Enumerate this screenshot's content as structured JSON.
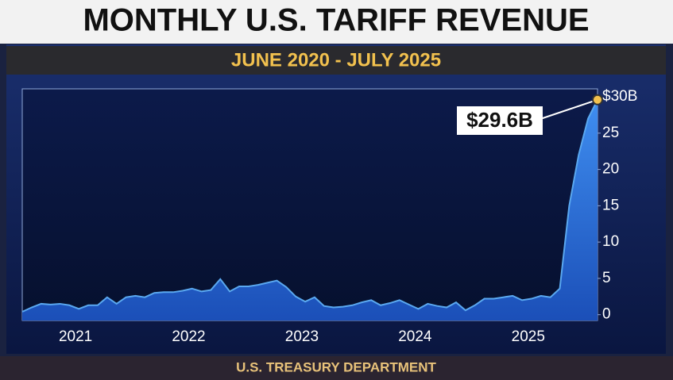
{
  "chart_data": {
    "type": "area",
    "title": "MONTHLY U.S. TARIFF REVENUE",
    "subtitle": "JUNE 2020 - JULY 2025",
    "source": "U.S. TREASURY DEPARTMENT",
    "categories": [
      null,
      null,
      null,
      null,
      null,
      null,
      null,
      "2021",
      null,
      null,
      null,
      null,
      null,
      null,
      null,
      null,
      null,
      null,
      null,
      "2022",
      null,
      null,
      null,
      null,
      null,
      null,
      null,
      null,
      null,
      null,
      null,
      "2023",
      null,
      null,
      null,
      null,
      null,
      null,
      null,
      null,
      null,
      null,
      null,
      "2024",
      null,
      null,
      null,
      null,
      null,
      null,
      null,
      null,
      null,
      null,
      null,
      "2025",
      null,
      null,
      null,
      null,
      null,
      null
    ],
    "series": [
      {
        "color": "#5aa8f0",
        "values": [
          0.4,
          1.0,
          1.5,
          1.4,
          1.5,
          1.3,
          0.8,
          1.3,
          1.3,
          2.4,
          1.5,
          2.4,
          2.6,
          2.4,
          3.0,
          3.1,
          3.1,
          3.3,
          3.6,
          3.2,
          3.4,
          4.9,
          3.2,
          3.9,
          3.9,
          4.1,
          4.4,
          4.7,
          3.8,
          2.5,
          1.8,
          2.4,
          1.2,
          1.0,
          1.1,
          1.3,
          1.7,
          2.0,
          1.3,
          1.6,
          2.0,
          1.4,
          0.8,
          1.5,
          1.2,
          1.0,
          1.7,
          0.6,
          1.3,
          2.2,
          2.2,
          2.4,
          2.6,
          2.0,
          2.2,
          2.6,
          2.4,
          3.6,
          15,
          22,
          27,
          29.6
        ],
        "value_labels": [
          null,
          null,
          null,
          null,
          null,
          null,
          null,
          null,
          null,
          null,
          null,
          null,
          null,
          null,
          null,
          null,
          null,
          null,
          null,
          null,
          null,
          null,
          null,
          null,
          null,
          null,
          null,
          null,
          null,
          null,
          null,
          null,
          null,
          null,
          null,
          null,
          null,
          null,
          null,
          null,
          null,
          null,
          null,
          null,
          null,
          null,
          null,
          null,
          null,
          null,
          null,
          null,
          null,
          null,
          null,
          null,
          null,
          null,
          null,
          null,
          null,
          "$29.6B"
        ]
      }
    ],
    "ylim": [
      -0.8,
      31.1
    ],
    "yticks": [
      0,
      5,
      10,
      15,
      20,
      25,
      {
        "value": 30,
        "label": "$30B"
      }
    ],
    "grid": false
  }
}
